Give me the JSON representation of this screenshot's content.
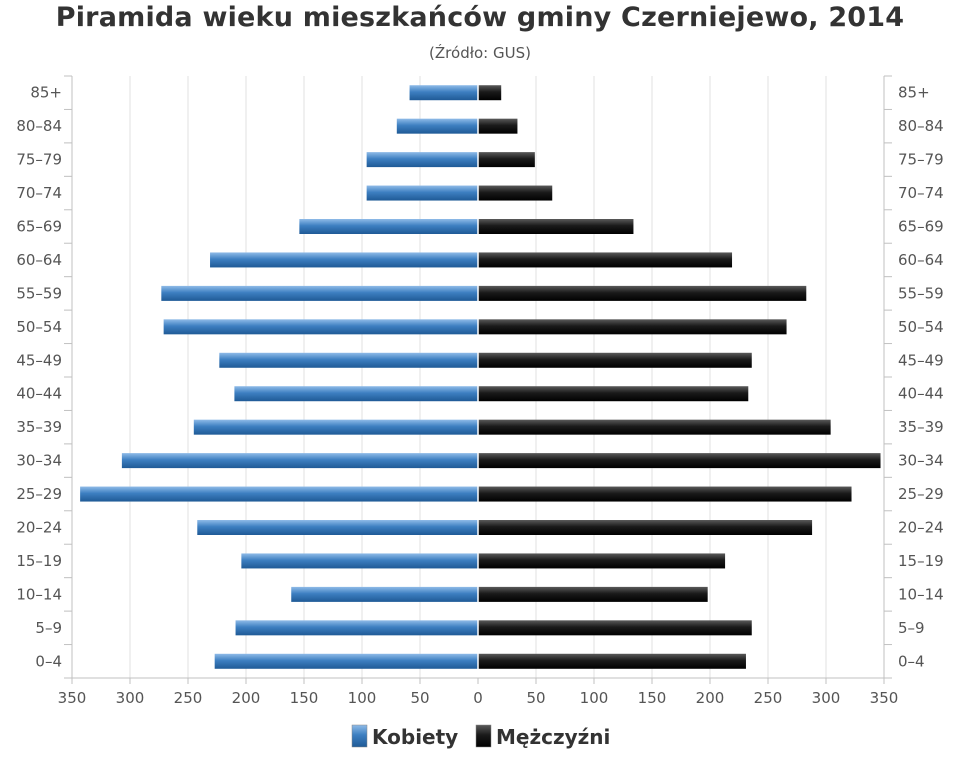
{
  "chart_data": {
    "type": "bar",
    "orientation": "horizontal-pyramid",
    "title": "Piramida wieku mieszkańców gminy Czerniejewo, 2014",
    "subtitle": "(Źródło: GUS)",
    "categories": [
      "0–4",
      "5–9",
      "10–14",
      "15–19",
      "20–24",
      "25–29",
      "30–34",
      "35–39",
      "40–44",
      "45–49",
      "50–54",
      "55–59",
      "60–64",
      "65–69",
      "70–74",
      "75–79",
      "80–84",
      "85+"
    ],
    "series": [
      {
        "name": "Kobiety",
        "color": "#3d7fc1",
        "side": "left",
        "values": [
          227,
          209,
          161,
          204,
          242,
          343,
          307,
          245,
          210,
          223,
          271,
          273,
          231,
          154,
          96,
          96,
          70,
          59
        ]
      },
      {
        "name": "Mężczyźni",
        "color": "#1a1a1a",
        "side": "right",
        "values": [
          231,
          236,
          198,
          213,
          288,
          322,
          347,
          304,
          233,
          236,
          266,
          283,
          219,
          134,
          64,
          49,
          34,
          20
        ]
      }
    ],
    "xlim": [
      -350,
      350
    ],
    "xticks": [
      350,
      300,
      250,
      200,
      150,
      100,
      50,
      0,
      50,
      100,
      150,
      200,
      250,
      300,
      350
    ],
    "grid": true,
    "legend": "bottom-center"
  }
}
